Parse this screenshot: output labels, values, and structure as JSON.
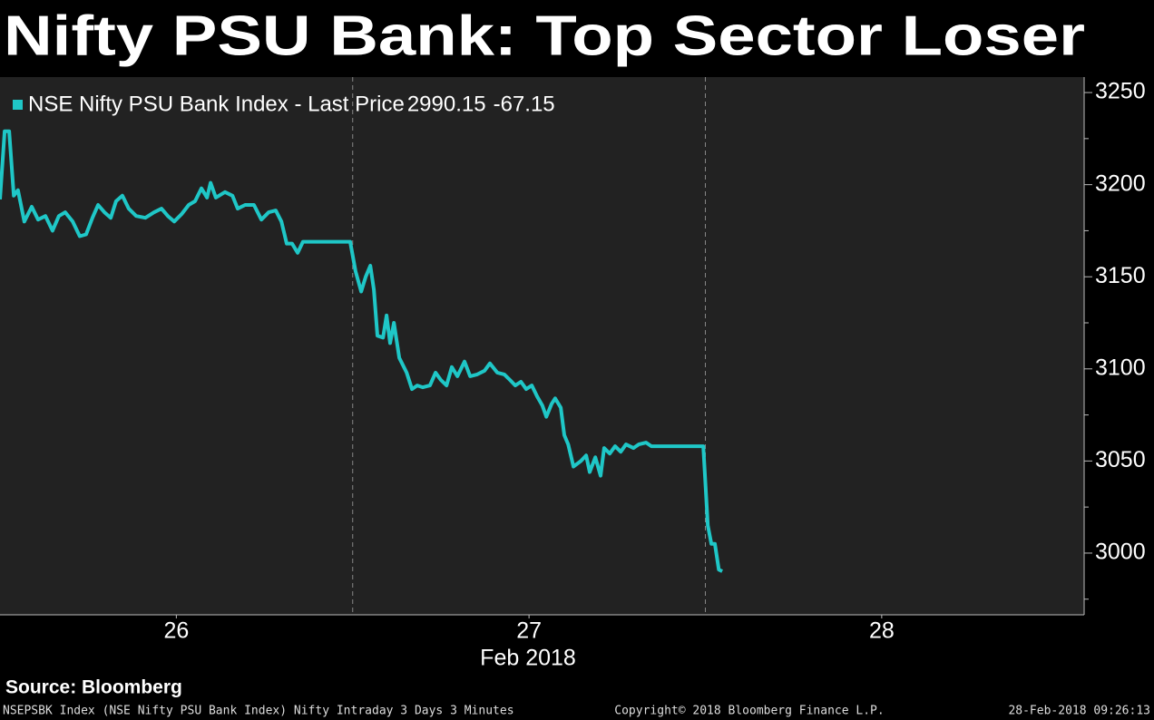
{
  "chart_data": {
    "type": "line",
    "title": "Nifty PSU Bank: Top Sector Loser",
    "x_label": "Feb 2018",
    "source": "Source: Bloomberg",
    "footer": {
      "left": "NSEPSBK Index (NSE Nifty PSU Bank Index) Nifty Intraday 3 Days 3 Minutes",
      "center": "Copyright© 2018 Bloomberg Finance L.P.",
      "right": "28-Feb-2018 09:26:13"
    },
    "legend_values": [
      2990.15,
      -67.15
    ],
    "xlim": [
      0,
      3.074
    ],
    "xticks": [
      {
        "value": 0.5,
        "label": "26"
      },
      {
        "value": 1.5,
        "label": "27"
      },
      {
        "value": 2.5,
        "label": "28"
      }
    ],
    "ylim": [
      2966.5,
      3258.4
    ],
    "yticks": [
      3000,
      3050,
      3100,
      3150,
      3200,
      3250
    ],
    "y_axis_side": "right",
    "series": [
      {
        "name": "NSE Nifty PSU Bank Index - Last Price",
        "color": "#1fc7c7",
        "x": [
          0,
          0.013,
          0.026,
          0.039,
          0.051,
          0.069,
          0.09,
          0.108,
          0.129,
          0.149,
          0.167,
          0.185,
          0.206,
          0.226,
          0.244,
          0.262,
          0.278,
          0.296,
          0.314,
          0.329,
          0.347,
          0.365,
          0.386,
          0.412,
          0.437,
          0.458,
          0.476,
          0.494,
          0.515,
          0.535,
          0.553,
          0.571,
          0.587,
          0.597,
          0.612,
          0.638,
          0.659,
          0.674,
          0.695,
          0.72,
          0.741,
          0.762,
          0.782,
          0.798,
          0.813,
          0.828,
          0.844,
          0.859,
          0.993,
          1.008,
          1.024,
          1.037,
          1.05,
          1.06,
          1.07,
          1.086,
          1.096,
          1.106,
          1.117,
          1.132,
          1.153,
          1.168,
          1.183,
          1.199,
          1.219,
          1.235,
          1.25,
          1.266,
          1.281,
          1.297,
          1.317,
          1.333,
          1.353,
          1.374,
          1.389,
          1.41,
          1.43,
          1.446,
          1.461,
          1.477,
          1.492,
          1.508,
          1.523,
          1.538,
          1.549,
          1.564,
          1.574,
          1.59,
          1.6,
          1.611,
          1.626,
          1.647,
          1.662,
          1.672,
          1.688,
          1.703,
          1.713,
          1.729,
          1.744,
          1.76,
          1.775,
          1.796,
          1.811,
          1.832,
          1.847,
          1.994,
          2.007,
          2.017,
          2.027,
          2.038,
          2.048
        ],
        "values": [
          3192,
          3229,
          3229,
          3194,
          3197,
          3180,
          3188,
          3181,
          3183,
          3175,
          3183,
          3185,
          3180,
          3172,
          3173,
          3182,
          3189,
          3185,
          3182,
          3191,
          3194,
          3187,
          3183,
          3182,
          3185,
          3187,
          3183,
          3180,
          3184,
          3189,
          3191,
          3198,
          3193,
          3201,
          3193,
          3196,
          3194,
          3187,
          3189,
          3189,
          3181,
          3185,
          3186,
          3180,
          3168,
          3168,
          3163,
          3169,
          3169,
          3153,
          3142,
          3150,
          3156,
          3143,
          3118,
          3117,
          3129,
          3114,
          3125,
          3106,
          3098,
          3089,
          3091,
          3090,
          3091,
          3098,
          3094,
          3091,
          3101,
          3096,
          3104,
          3096,
          3097,
          3099,
          3103,
          3098,
          3097,
          3094,
          3091,
          3093,
          3089,
          3091,
          3085,
          3080,
          3074,
          3081,
          3084,
          3079,
          3064,
          3059,
          3047,
          3050,
          3053,
          3044,
          3052,
          3042,
          3057,
          3054,
          3058,
          3055,
          3059,
          3057,
          3059,
          3060,
          3058,
          3058,
          3015,
          3005,
          3005,
          2991,
          2990.15
        ]
      }
    ]
  }
}
